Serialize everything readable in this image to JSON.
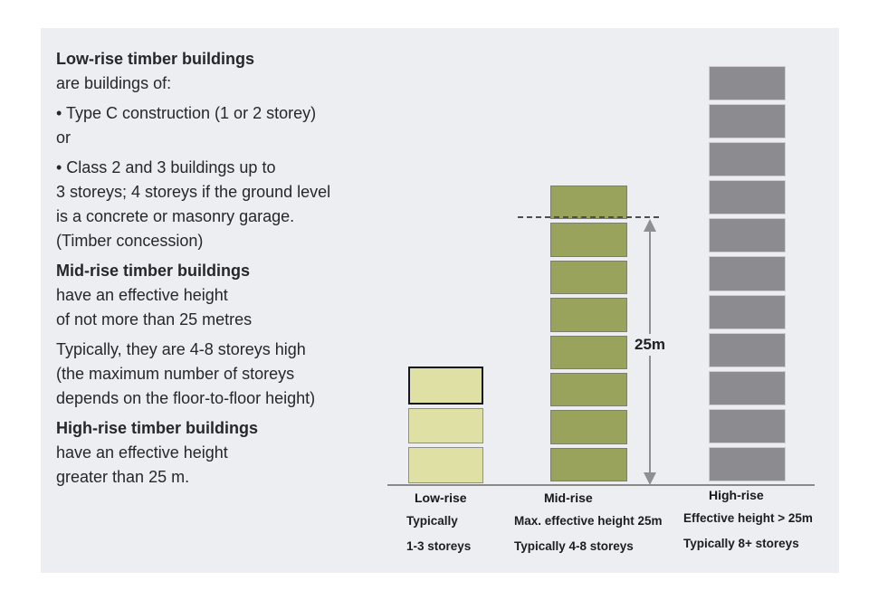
{
  "text_block": {
    "lines": [
      "Low-rise timber buildings",
      "are buildings of:",
      "• Type C construction (1 or 2 storey)",
      "or",
      "• Class 2 and 3 buildings up to",
      "3 storeys; 4 storeys if the ground level",
      "is a concrete or masonry garage.",
      "(Timber concession)",
      "Mid-rise timber buildings",
      "have an effective height",
      "of not more than 25 metres",
      "Typically, they are 4-8 storeys high",
      "(the maximum number of storeys",
      "depends on the floor-to-floor height)",
      "High-rise timber buildings",
      "have an effective height",
      "greater than 25 m."
    ]
  },
  "diagram": {
    "threshold_label": "25m",
    "columns": [
      {
        "key": "low-rise",
        "label": "Low-rise",
        "storeys": 3,
        "fill": "#dfe1a4",
        "border": "#8f8f8f",
        "desc1": "Typically",
        "desc2": "1-3 storeys"
      },
      {
        "key": "mid-rise",
        "label": "Mid-rise",
        "storeys": 8,
        "fill": "#9aa35b",
        "border": "#7e7e6e",
        "desc1": "Max. effective height 25m",
        "desc2": "Typically 4-8 storeys"
      },
      {
        "key": "high-rise",
        "label": "High-rise",
        "storeys": 11,
        "fill": "#8c8c90",
        "border": "#cdcdd1",
        "desc1": "Effective height > 25m",
        "desc2": "Typically 8+ storeys"
      }
    ],
    "colors": {
      "panel_bg": "#edeef2",
      "ground_line": "#8a8a8a",
      "dashed_line": "#4c4c4c",
      "arrow": "#8f8f93",
      "text": "#26262b"
    }
  }
}
